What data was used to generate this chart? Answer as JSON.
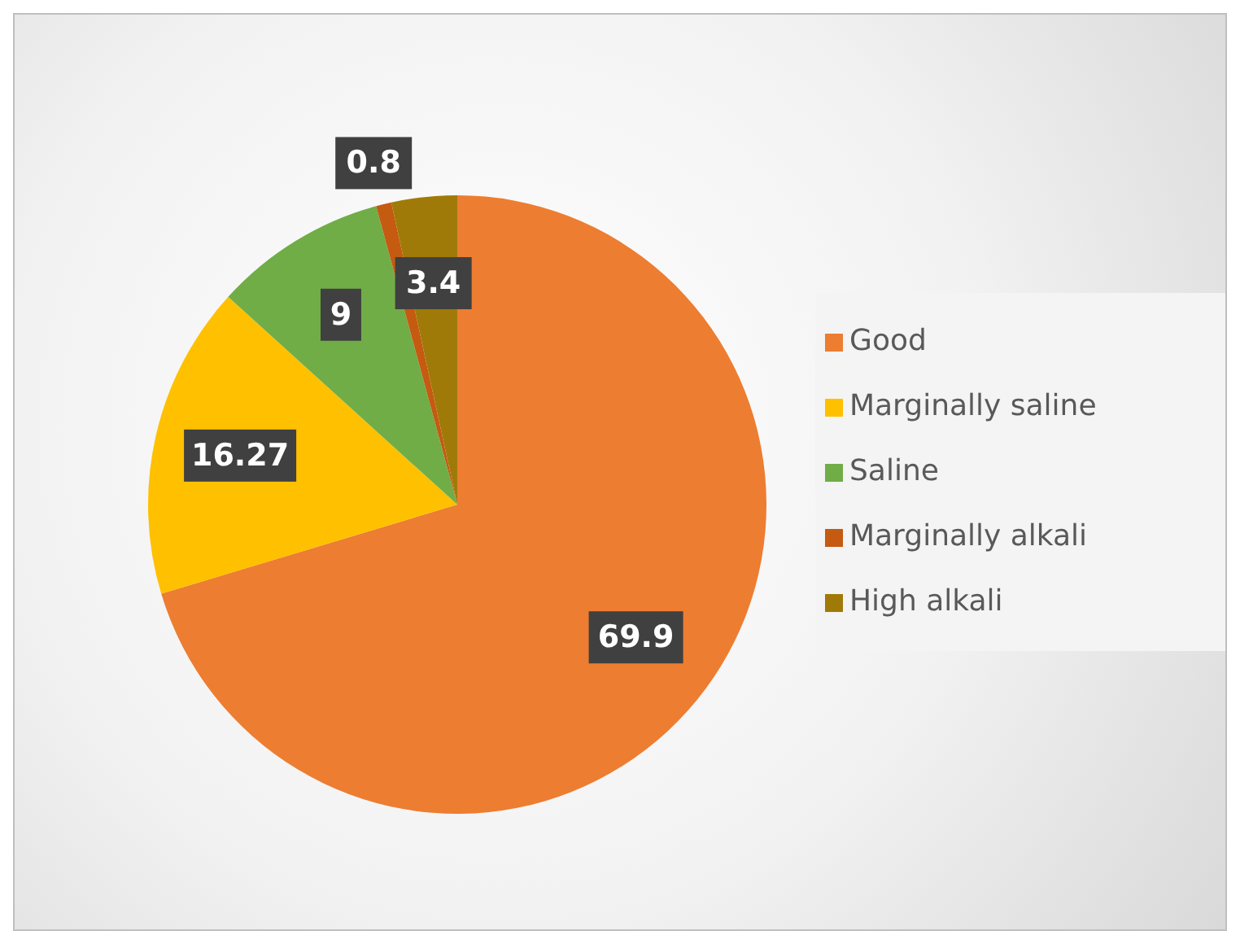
{
  "chart_data": {
    "type": "pie",
    "categories": [
      "Good",
      "Marginally saline",
      "Saline",
      "Marginally alkali",
      "High alkali"
    ],
    "values": [
      69.9,
      16.27,
      9,
      0.8,
      3.4
    ],
    "colors": [
      "#ed7d31",
      "#ffc000",
      "#70ad47",
      "#c55a11",
      "#a07a08"
    ],
    "data_labels": true,
    "legend": "right"
  }
}
